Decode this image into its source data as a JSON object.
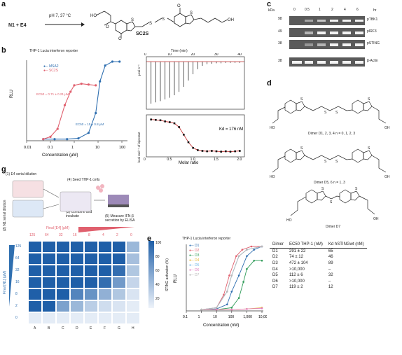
{
  "panels": {
    "a": "a",
    "b": "b",
    "c": "c",
    "d": "d",
    "e": "e",
    "g": "g"
  },
  "a": {
    "reactants": "N1 + E4",
    "conditions": "pH 7, 37 °C",
    "product": "SC2S"
  },
  "b": {
    "title": "THP-1 Lucia interferon reporter",
    "legend": [
      "MSA2",
      "SC2S"
    ],
    "ec50_sc2s": "EC50 = 0.71 ± 0.21 μM",
    "ec50_msa2": "EC50 = 15 ± 0.8 μM",
    "itc_time_label": "Time (min)",
    "itc_top_ylabel": "μcal s⁻¹",
    "itc_bottom_ylabel": "kcal mol⁻¹ of injectant",
    "itc_xlabel": "Molar ratio",
    "kd": "Kd = 176 nM"
  },
  "chart_data": [
    {
      "type": "line",
      "id": "b-reporter",
      "title": "THP-1 Lucia interferon reporter",
      "xlabel": "Concentration (μM)",
      "ylabel": "RLU",
      "xscale": "log",
      "x_ticks": [
        "0.01",
        "0.1",
        "1",
        "10",
        "100"
      ],
      "xlim": [
        0.01,
        150
      ],
      "series": [
        {
          "name": "MSA2",
          "color": "#2f6fb0",
          "x": [
            0.05,
            0.15,
            0.5,
            1.5,
            4,
            8,
            12,
            20,
            40,
            80
          ],
          "y": [
            0.02,
            0.02,
            0.02,
            0.03,
            0.1,
            0.35,
            0.75,
            0.95,
            1.0,
            1.0
          ]
        },
        {
          "name": "SC2S",
          "color": "#e0606e",
          "x": [
            0.05,
            0.1,
            0.2,
            0.4,
            0.7,
            1,
            2,
            4,
            8
          ],
          "y": [
            0.02,
            0.05,
            0.15,
            0.45,
            0.62,
            0.7,
            0.72,
            0.71,
            0.7
          ]
        }
      ]
    },
    {
      "type": "line",
      "id": "b-itc-raw",
      "xlabel": "Time (min)",
      "ylabel": "μcal s⁻¹",
      "x_ticks": [
        "0",
        "10",
        "20",
        "30",
        "40"
      ],
      "xlim": [
        0,
        42
      ],
      "series": [
        {
          "name": "",
          "color": "#333333",
          "x": [
            2,
            4,
            6,
            8,
            10,
            12,
            14,
            16,
            18,
            20,
            22,
            24,
            26,
            28,
            30,
            32,
            34,
            36,
            38,
            40
          ],
          "y": [
            1.0,
            0.97,
            0.94,
            0.9,
            0.86,
            0.8,
            0.72,
            0.6,
            0.45,
            0.3,
            0.18,
            0.1,
            0.06,
            0.05,
            0.04,
            0.04,
            0.03,
            0.03,
            0.03,
            0.03
          ]
        }
      ]
    },
    {
      "type": "scatter",
      "id": "b-itc-binding",
      "xlabel": "Molar ratio",
      "ylabel": "kcal mol⁻¹ of injectant",
      "x_ticks": [
        "0",
        "0.5",
        "1.0",
        "1.5",
        "2.0"
      ],
      "xlim": [
        0,
        2.1
      ],
      "series": [
        {
          "name": "",
          "color": "#111111",
          "x": [
            0.1,
            0.2,
            0.3,
            0.4,
            0.5,
            0.6,
            0.7,
            0.8,
            0.9,
            1.0,
            1.1,
            1.2,
            1.3,
            1.4,
            1.5,
            1.6,
            1.7,
            1.8,
            1.9,
            2.0
          ],
          "y": [
            -0.5,
            -0.6,
            -0.7,
            -1.0,
            -1.2,
            -1.5,
            -2.5,
            -4.5,
            -6.5,
            -8.0,
            -8.6,
            -8.8,
            -8.9,
            -8.8,
            -8.9,
            -9.0,
            -8.9,
            -9.0,
            -8.9,
            -8.8
          ]
        }
      ]
    },
    {
      "type": "line",
      "id": "e-reporter",
      "title": "THP-1 Lucia interferon reporter",
      "xlabel": "Concentration (nM)",
      "ylabel": "RLU",
      "xscale": "log",
      "x_ticks": [
        "0.1",
        "1",
        "10",
        "100",
        "1,000",
        "10,000"
      ],
      "xlim": [
        0.1,
        10000
      ],
      "series": [
        {
          "name": "D1",
          "color": "#2f6fb0",
          "x": [
            1,
            10,
            50,
            100,
            300,
            1000,
            3000,
            10000
          ],
          "y": [
            0.02,
            0.03,
            0.1,
            0.3,
            0.55,
            0.85,
            0.95,
            1.0
          ]
        },
        {
          "name": "D2",
          "color": "#e0606e",
          "x": [
            1,
            10,
            30,
            70,
            200,
            500,
            2000,
            10000
          ],
          "y": [
            0.02,
            0.05,
            0.25,
            0.55,
            0.85,
            0.95,
            1.0,
            1.0
          ]
        },
        {
          "name": "D3",
          "color": "#2e9b57",
          "x": [
            1,
            10,
            100,
            300,
            600,
            1000,
            3000,
            10000
          ],
          "y": [
            0.02,
            0.02,
            0.05,
            0.2,
            0.45,
            0.65,
            0.78,
            0.78
          ]
        },
        {
          "name": "D4",
          "color": "#e8b93a",
          "x": [
            1,
            10,
            100,
            1000,
            10000
          ],
          "y": [
            0.02,
            0.02,
            0.02,
            0.03,
            0.05
          ]
        },
        {
          "name": "D5",
          "color": "#6fb6e6",
          "x": [
            1,
            10,
            50,
            100,
            300,
            1000,
            10000
          ],
          "y": [
            0.02,
            0.05,
            0.3,
            0.55,
            0.85,
            0.95,
            1.0
          ]
        },
        {
          "name": "D6",
          "color": "#e07fc0",
          "x": [
            1,
            10,
            100,
            1000,
            10000
          ],
          "y": [
            0.02,
            0.02,
            0.02,
            0.03,
            0.04
          ]
        },
        {
          "name": "D7",
          "color": "#b9b9b9",
          "x": [
            1,
            10,
            50,
            100,
            300,
            1000,
            10000
          ],
          "y": [
            0.02,
            0.05,
            0.3,
            0.55,
            0.85,
            0.95,
            1.0
          ]
        }
      ]
    },
    {
      "type": "heatmap",
      "id": "g-heatmap",
      "xlabel": "Final [E4] (μM)",
      "ylabel": "Final [N1] (μM)",
      "columns": [
        "A",
        "B",
        "C",
        "D",
        "E",
        "F",
        "G",
        "H"
      ],
      "e4_values": [
        "125",
        "64",
        "32",
        "16",
        "8",
        "4",
        "2",
        "0"
      ],
      "rows": [
        "125",
        "64",
        "32",
        "16",
        "8",
        "2",
        "0"
      ],
      "row_letters": [
        "1",
        "2",
        "3",
        "4",
        "5",
        "6",
        "7"
      ],
      "colorbar_label": "STING activation (%)",
      "colorbar_ticks": [
        "100",
        "80",
        "60",
        "40",
        "20"
      ],
      "values": [
        [
          100,
          100,
          100,
          100,
          100,
          100,
          100,
          40
        ],
        [
          100,
          100,
          100,
          100,
          100,
          100,
          100,
          35
        ],
        [
          100,
          100,
          100,
          100,
          100,
          100,
          90,
          30
        ],
        [
          100,
          100,
          100,
          100,
          100,
          90,
          60,
          20
        ],
        [
          100,
          100,
          100,
          75,
          65,
          45,
          30,
          10
        ],
        [
          100,
          100,
          55,
          40,
          25,
          15,
          10,
          5
        ],
        [
          5,
          5,
          5,
          5,
          5,
          5,
          5,
          5
        ]
      ]
    }
  ],
  "c": {
    "kda_label": "kDa",
    "hr_label": "hr",
    "timepoints": [
      "0",
      "0.5",
      "1",
      "2",
      "4",
      "6"
    ],
    "markers": [
      "98",
      "49",
      "38",
      "38"
    ],
    "rows": [
      "pTBK1",
      "pIRF3",
      "pSTING",
      "β-Actin"
    ]
  },
  "d": {
    "dimer_label_1": "Dimer D1, 2, 3, 4 n = 0, 1, 2, 3",
    "dimer_label_2": "Dimer D5, 6 n = 1, 3",
    "dimer_label_3": "Dimer D7"
  },
  "e": {
    "title": "THP-1 Lucia interferon reporter",
    "ylabel": "RLU",
    "xlabel": "Concentration (nM)",
    "legend": [
      "D1",
      "D2",
      "D3",
      "D4",
      "D5",
      "D6",
      "D7"
    ],
    "table_headers": [
      "Dimer",
      "EC50 THP-1 (nM)",
      "Kd hSTINGwt (nM)"
    ],
    "table_rows": [
      [
        "D1",
        "291 ± 22",
        "65"
      ],
      [
        "D2",
        "74 ± 12",
        "46"
      ],
      [
        "D3",
        "472 ± 104",
        "89"
      ],
      [
        "D4",
        ">10,000",
        "–"
      ],
      [
        "D5",
        "112 ± 6",
        "32"
      ],
      [
        "D6",
        ">10,000",
        "–"
      ],
      [
        "D7",
        "119 ± 2",
        "12"
      ]
    ]
  },
  "g": {
    "step1": "(1) E4 serial dilution",
    "step2": "(2) N1 serial dilution",
    "step3": "(3) Combine and incubate",
    "step4": "(4) Seed THP-1 cells",
    "step5": "(5) Measure IFN-β secretion by ELISA",
    "e4_label": "Final [E4] (μM)",
    "n1_label": "Final [N1] (μM)",
    "colorbar_label": "STING activation (%)"
  },
  "colors": {
    "msa2": "#2f6fb0",
    "sc2s": "#e0606e",
    "heat_high": "#1f5fa8",
    "heat_low": "#eef3fa"
  }
}
